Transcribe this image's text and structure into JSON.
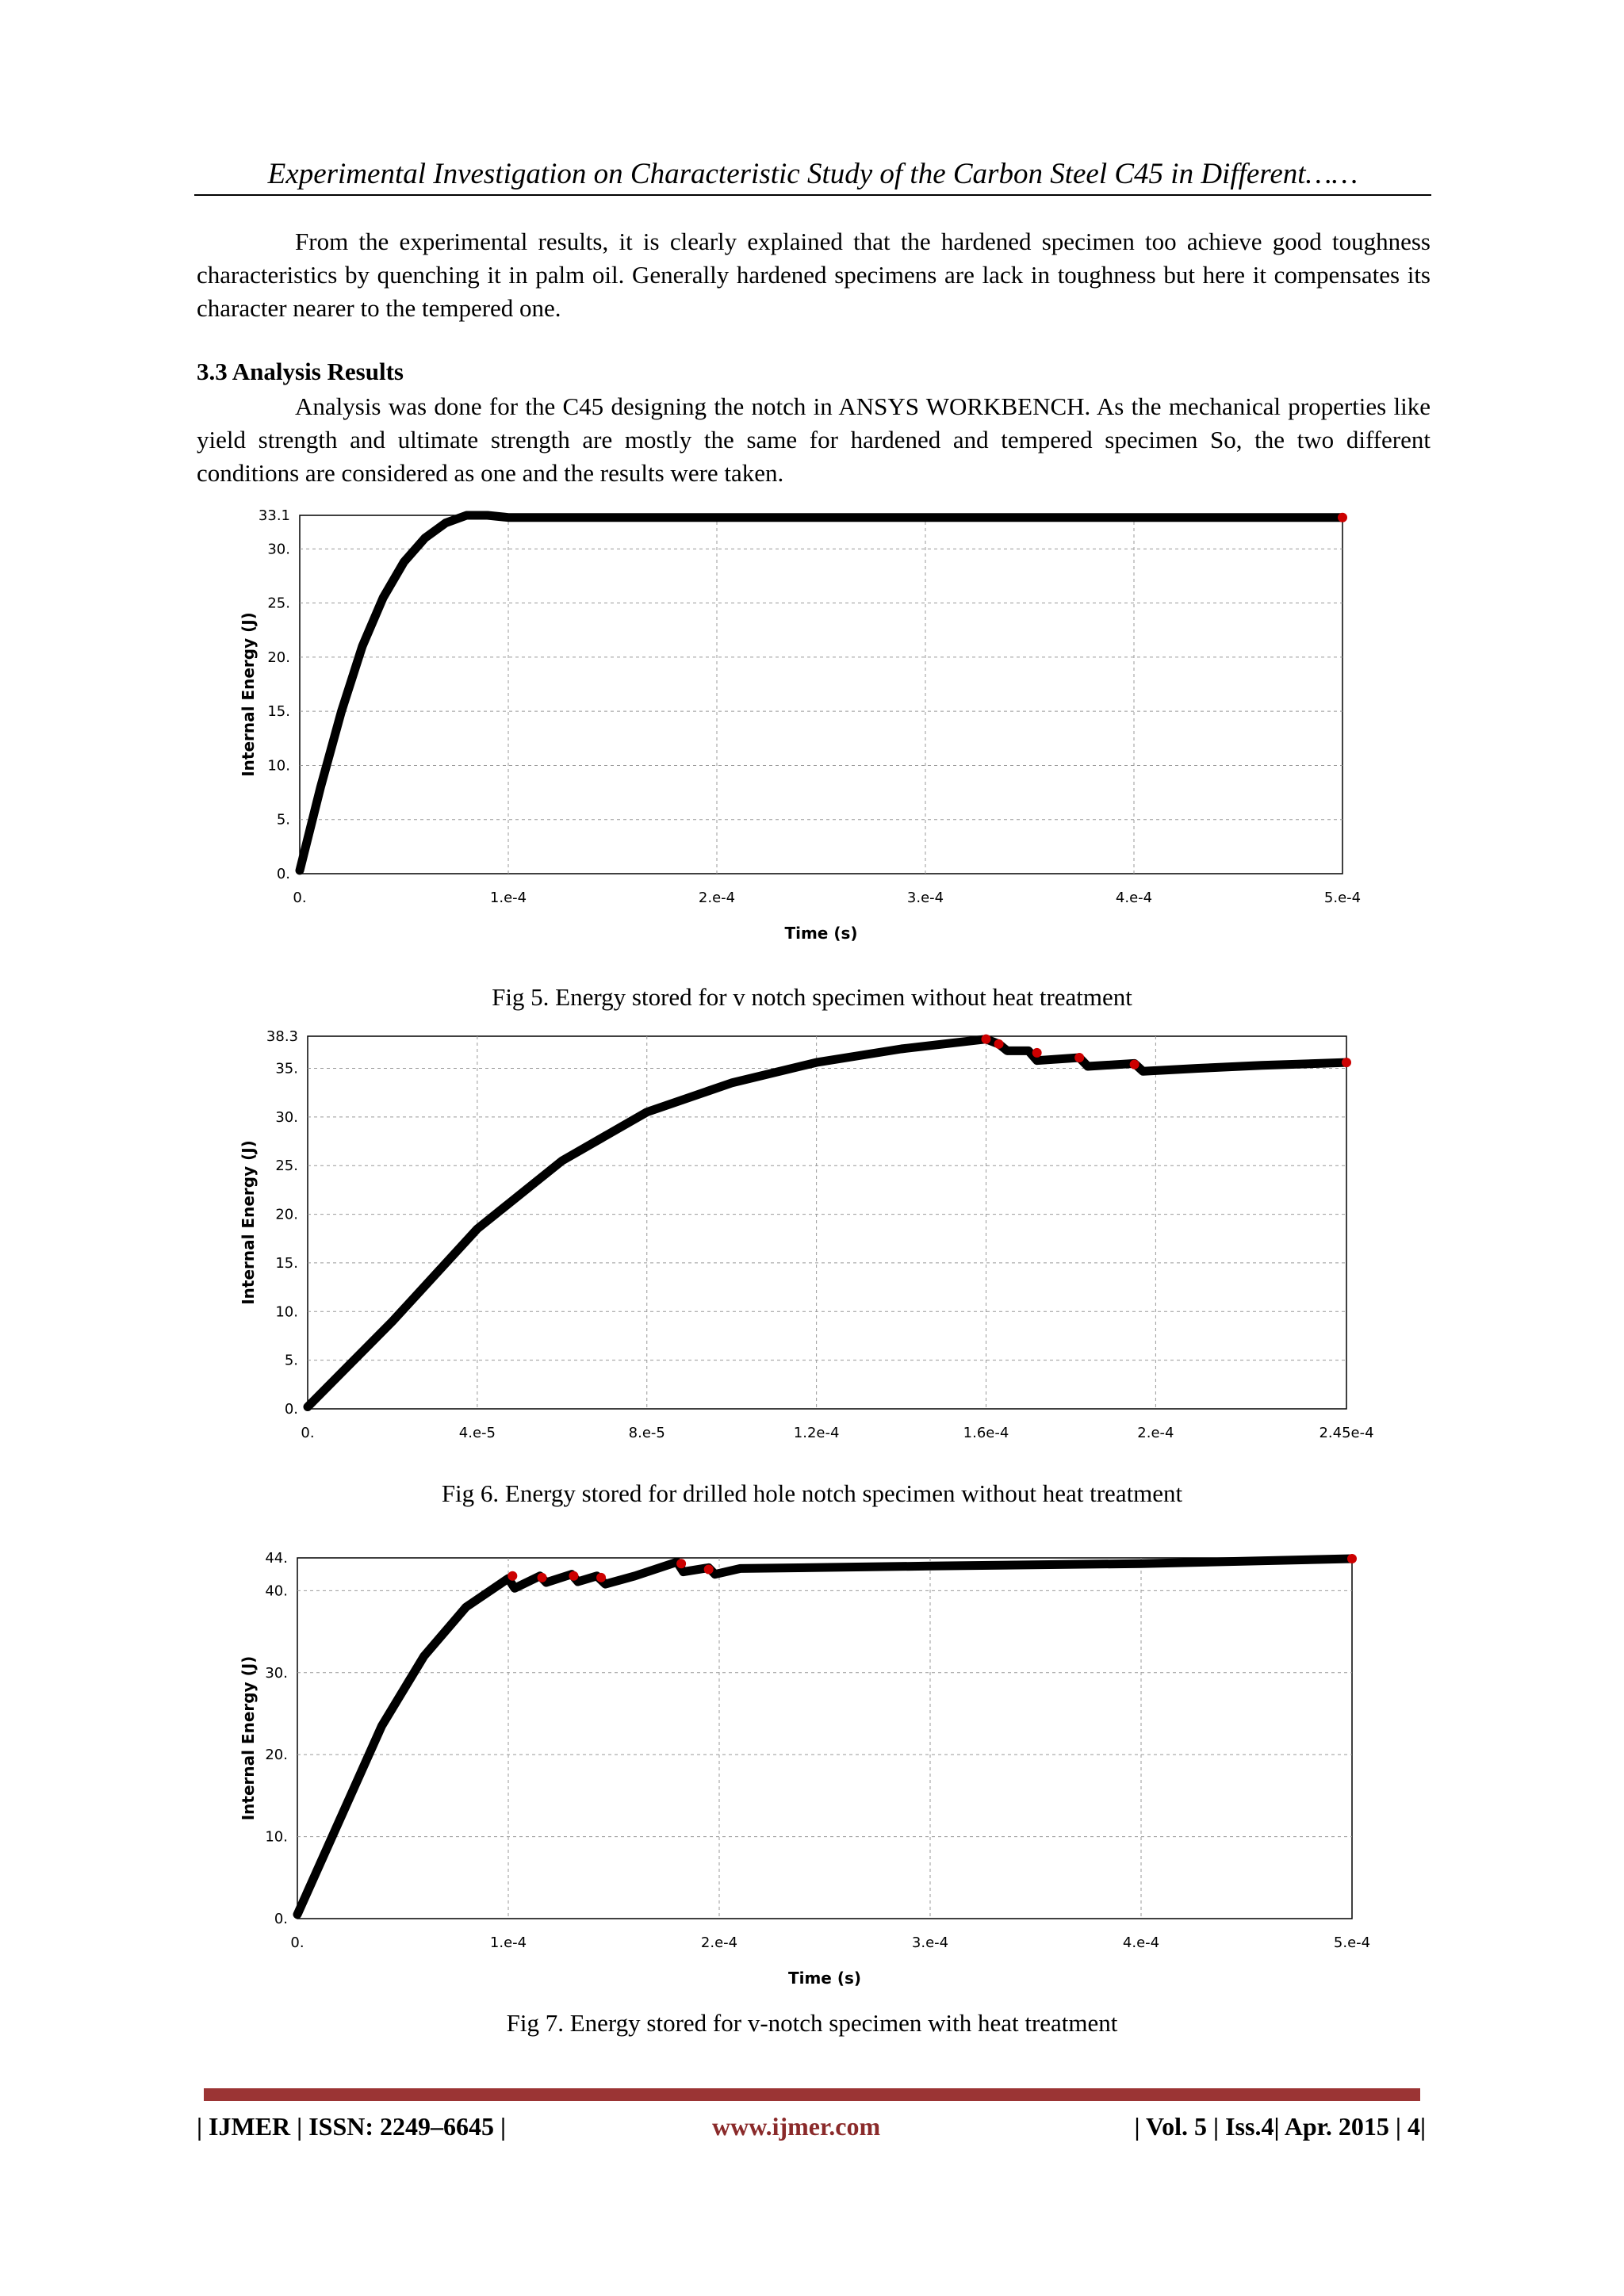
{
  "header": {
    "running_title": "Experimental Investigation on Characteristic Study of the Carbon Steel C45 in Different……"
  },
  "paragraphs": [
    "From the experimental results, it is clearly explained that the hardened specimen too achieve good toughness characteristics by quenching it in palm oil. Generally hardened specimens are lack in toughness but here it compensates its character nearer to the tempered one.",
    "Analysis was done for the C45 designing the notch in ANSYS WORKBENCH.  As the mechanical properties like yield strength and ultimate strength are mostly the same for  hardened and tempered specimen So, the two different conditions are considered as one and the results were taken."
  ],
  "section_heading": "3.3 Analysis Results",
  "footer": {
    "left": "| IJMER | ISSN: 2249–6645 |",
    "center": "www.ijmer.com",
    "right": "| Vol. 5 | Iss.4| Apr. 2015 | 4|"
  },
  "chart_data": [
    {
      "type": "line",
      "caption": "Fig 5. Energy stored for v notch specimen without heat treatment",
      "xlabel": "Time (s)",
      "ylabel": "Internal Energy (J)",
      "xlim": [
        0,
        0.0005
      ],
      "ylim": [
        0,
        33.1
      ],
      "xticks": [
        0,
        0.0001,
        0.0002,
        0.0003,
        0.0004,
        0.0005
      ],
      "xtick_labels": [
        "0.",
        "1.e-4",
        "2.e-4",
        "3.e-4",
        "4.e-4",
        "5.e-4"
      ],
      "yticks": [
        0,
        5,
        10,
        15,
        20,
        25,
        30,
        33.1
      ],
      "ytick_labels": [
        "0.",
        "5.",
        "10.",
        "15.",
        "20.",
        "25.",
        "30.",
        "33.1"
      ],
      "grid": true,
      "line_color": "#000000",
      "marker_color": "#cc0000",
      "points": [
        [
          0,
          0.3
        ],
        [
          1e-05,
          8
        ],
        [
          2e-05,
          15
        ],
        [
          3e-05,
          21
        ],
        [
          4e-05,
          25.5
        ],
        [
          5e-05,
          28.8
        ],
        [
          6e-05,
          31
        ],
        [
          7e-05,
          32.4
        ],
        [
          8e-05,
          33.1
        ],
        [
          9e-05,
          33.1
        ],
        [
          0.0001,
          32.9
        ],
        [
          0.0002,
          32.9
        ],
        [
          0.0003,
          32.9
        ],
        [
          0.0004,
          32.9
        ],
        [
          0.0005,
          32.9
        ]
      ],
      "markers": [
        [
          0.0005,
          32.9
        ]
      ]
    },
    {
      "type": "line",
      "caption": "Fig 6. Energy stored for drilled hole notch specimen without heat treatment",
      "xlabel": "",
      "ylabel": "Internal Energy (J)",
      "xlim": [
        0,
        0.000245
      ],
      "ylim": [
        0,
        38.3
      ],
      "xticks": [
        0,
        4e-05,
        8e-05,
        0.00012,
        0.00016,
        0.0002,
        0.000245
      ],
      "xtick_labels": [
        "0.",
        "4.e-5",
        "8.e-5",
        "1.2e-4",
        "1.6e-4",
        "2.e-4",
        "2.45e-4"
      ],
      "yticks": [
        0,
        5,
        10,
        15,
        20,
        25,
        30,
        35,
        38.3
      ],
      "ytick_labels": [
        "0.",
        "5.",
        "10.",
        "15.",
        "20.",
        "25.",
        "30.",
        "35.",
        "38.3"
      ],
      "grid": true,
      "line_color": "#000000",
      "marker_color": "#cc0000",
      "points": [
        [
          0,
          0.2
        ],
        [
          2e-05,
          9
        ],
        [
          4e-05,
          18.5
        ],
        [
          6e-05,
          25.5
        ],
        [
          8e-05,
          30.5
        ],
        [
          0.0001,
          33.5
        ],
        [
          0.00012,
          35.6
        ],
        [
          0.00014,
          37
        ],
        [
          0.00016,
          38
        ],
        [
          0.000163,
          37.5
        ],
        [
          0.000165,
          36.8
        ],
        [
          0.00017,
          36.8
        ],
        [
          0.000172,
          35.8
        ],
        [
          0.000182,
          36.1
        ],
        [
          0.000184,
          35.2
        ],
        [
          0.000195,
          35.5
        ],
        [
          0.000197,
          34.7
        ],
        [
          0.00021,
          35
        ],
        [
          0.000225,
          35.3
        ],
        [
          0.000245,
          35.6
        ]
      ],
      "markers": [
        [
          0.00016,
          38
        ],
        [
          0.000163,
          37.5
        ],
        [
          0.000172,
          36.6
        ],
        [
          0.000182,
          36.1
        ],
        [
          0.000195,
          35.4
        ],
        [
          0.000245,
          35.6
        ]
      ]
    },
    {
      "type": "line",
      "caption": "Fig 7. Energy stored for v-notch specimen with heat treatment",
      "xlabel": "Time (s)",
      "ylabel": "Internal Energy (J)",
      "xlim": [
        0,
        0.0005
      ],
      "ylim": [
        0,
        44
      ],
      "xticks": [
        0,
        0.0001,
        0.0002,
        0.0003,
        0.0004,
        0.0005
      ],
      "xtick_labels": [
        "0.",
        "1.e-4",
        "2.e-4",
        "3.e-4",
        "4.e-4",
        "5.e-4"
      ],
      "yticks": [
        0,
        10,
        20,
        30,
        40,
        44
      ],
      "ytick_labels": [
        "0.",
        "10.",
        "20.",
        "30.",
        "40.",
        "44."
      ],
      "grid": true,
      "line_color": "#000000",
      "marker_color": "#cc0000",
      "points": [
        [
          0,
          0.5
        ],
        [
          2e-05,
          12
        ],
        [
          4e-05,
          23.5
        ],
        [
          6e-05,
          32
        ],
        [
          8e-05,
          38
        ],
        [
          0.0001,
          41.5
        ],
        [
          0.000103,
          40.3
        ],
        [
          0.000115,
          41.8
        ],
        [
          0.000118,
          41
        ],
        [
          0.00013,
          42
        ],
        [
          0.000133,
          41.1
        ],
        [
          0.000142,
          41.8
        ],
        [
          0.000146,
          40.8
        ],
        [
          0.00016,
          41.8
        ],
        [
          0.00018,
          43.5
        ],
        [
          0.000183,
          42.3
        ],
        [
          0.000195,
          42.8
        ],
        [
          0.000198,
          42
        ],
        [
          0.00021,
          42.7
        ],
        [
          0.0003,
          43
        ],
        [
          0.0004,
          43.3
        ],
        [
          0.0005,
          43.9
        ]
      ],
      "markers": [
        [
          0.000102,
          41.8
        ],
        [
          0.000116,
          41.6
        ],
        [
          0.000131,
          41.8
        ],
        [
          0.000144,
          41.6
        ],
        [
          0.000182,
          43.3
        ],
        [
          0.000195,
          42.6
        ],
        [
          0.0005,
          43.9
        ]
      ]
    }
  ]
}
